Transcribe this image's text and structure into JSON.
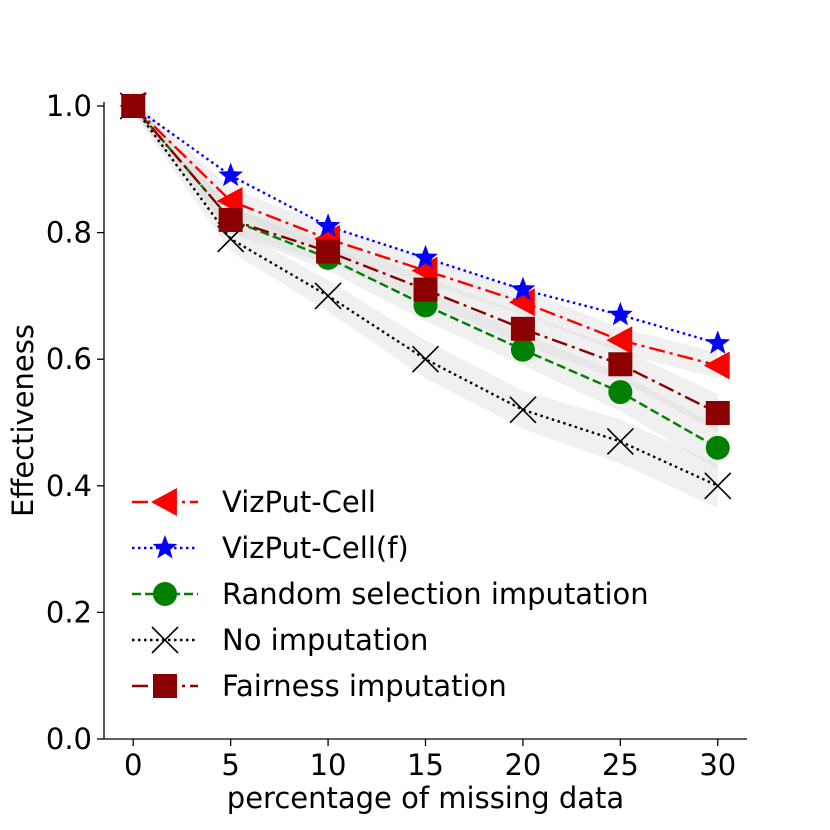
{
  "chart_data": {
    "type": "line",
    "title": "",
    "xlabel": "percentage of missing data",
    "ylabel": "Effectiveness",
    "x": [
      0,
      5,
      10,
      15,
      20,
      25,
      30
    ],
    "xlim": [
      -1.5,
      31.5
    ],
    "ylim": [
      0.0,
      1.0
    ],
    "xticks": [
      0,
      5,
      10,
      15,
      20,
      25,
      30
    ],
    "yticks": [
      0.0,
      0.2,
      0.4,
      0.6,
      0.8,
      1.0
    ],
    "xtick_labels": [
      "0",
      "5",
      "10",
      "15",
      "20",
      "25",
      "30"
    ],
    "ytick_labels": [
      "0.0",
      "0.2",
      "0.4",
      "0.6",
      "0.8",
      "1.0"
    ],
    "grid": false,
    "legend_position": "bottom-left",
    "series": [
      {
        "name": "VizPut-Cell",
        "values": [
          1.0,
          0.85,
          0.79,
          0.74,
          0.69,
          0.63,
          0.59
        ],
        "band": [
          0.01,
          0.02,
          0.02,
          0.02,
          0.02,
          0.02,
          0.02
        ],
        "color": "#ff0000",
        "dash": "dashdot",
        "marker": "triangle-left"
      },
      {
        "name": "VizPut-Cell(f)",
        "values": [
          1.0,
          0.89,
          0.81,
          0.76,
          0.71,
          0.67,
          0.625
        ],
        "band": [
          0.0,
          0.0,
          0.0,
          0.0,
          0.0,
          0.0,
          0.0
        ],
        "color": "#0000ff",
        "dash": "dotted",
        "marker": "star"
      },
      {
        "name": "Random selection imputation",
        "values": [
          1.0,
          0.82,
          0.76,
          0.685,
          0.615,
          0.548,
          0.46
        ],
        "band": [
          0.01,
          0.02,
          0.02,
          0.025,
          0.025,
          0.03,
          0.035
        ],
        "color": "#008000",
        "dash": "dashed",
        "marker": "circle"
      },
      {
        "name": "No imputation",
        "values": [
          1.0,
          0.79,
          0.7,
          0.6,
          0.52,
          0.47,
          0.4
        ],
        "band": [
          0.01,
          0.02,
          0.025,
          0.03,
          0.03,
          0.035,
          0.035
        ],
        "color": "#000000",
        "dash": "dotted",
        "marker": "x"
      },
      {
        "name": "Fairness imputation",
        "values": [
          1.0,
          0.82,
          0.77,
          0.71,
          0.648,
          0.592,
          0.515
        ],
        "band": [
          0.01,
          0.02,
          0.02,
          0.02,
          0.025,
          0.025,
          0.03
        ],
        "color": "#8b0000",
        "dash": "dashdot",
        "marker": "square"
      }
    ]
  }
}
